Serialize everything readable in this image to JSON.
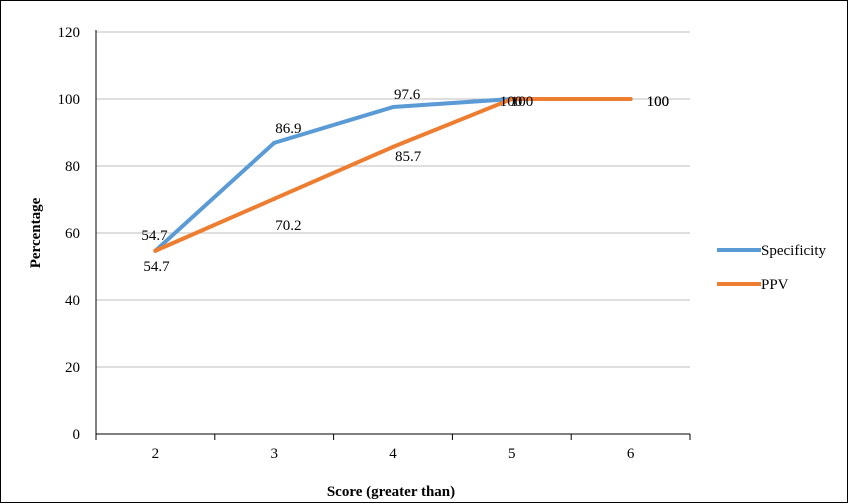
{
  "chart_data": {
    "type": "line",
    "title": "",
    "xlabel": "Score (greater than)",
    "ylabel": "Percentage",
    "x": [
      2,
      3,
      4,
      5,
      6
    ],
    "x_tick_labels": [
      "2",
      "3",
      "4",
      "5",
      "6"
    ],
    "ylim": [
      0,
      120
    ],
    "y_ticks": [
      0,
      20,
      40,
      60,
      80,
      100,
      120
    ],
    "y_tick_labels": [
      "0",
      "20",
      "40",
      "60",
      "80",
      "100",
      "120"
    ],
    "grid": "horizontal",
    "legend_position": "right",
    "series": [
      {
        "name": "Specificity",
        "color": "#5B9BD5",
        "values": [
          54.7,
          86.9,
          97.6,
          100,
          100
        ],
        "labels": [
          "54.7",
          "86.9",
          "97.6",
          "100",
          "100"
        ]
      },
      {
        "name": "PPV",
        "color": "#ED7D31",
        "values": [
          54.7,
          70.2,
          85.7,
          100,
          100
        ],
        "labels": [
          "54.7",
          "70.2",
          "85.7",
          "100",
          "100"
        ]
      }
    ]
  }
}
